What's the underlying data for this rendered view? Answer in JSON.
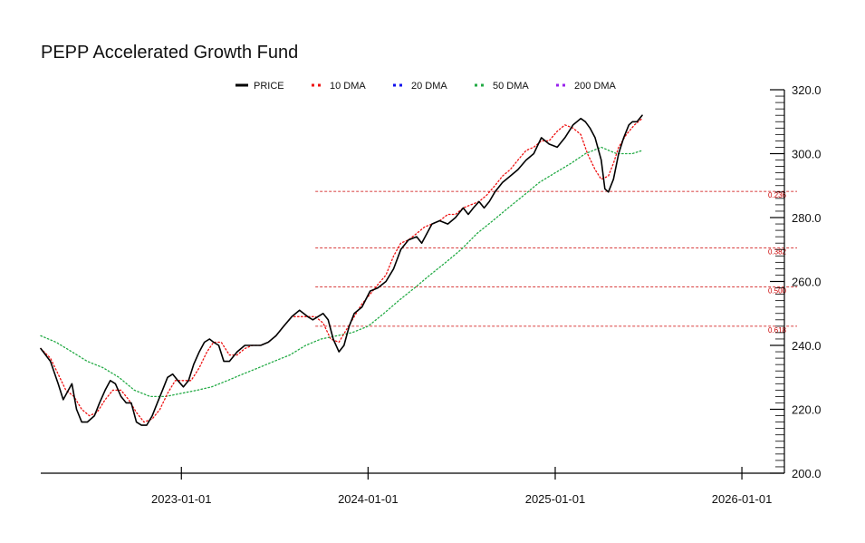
{
  "chart_data": {
    "type": "line",
    "title": "PEPP Accelerated Growth Fund",
    "xlabel": "",
    "ylabel": "",
    "x_range": [
      "2022-04-01",
      "2026-01-31"
    ],
    "ylim": [
      200,
      320
    ],
    "y_ticks": [
      "320.0",
      "300.0",
      "280.0",
      "260.0",
      "240.0",
      "220.0",
      "200.0"
    ],
    "y_tick_values": [
      320,
      300,
      280,
      260,
      240,
      220,
      200
    ],
    "x_ticks": [
      "2023-01-01",
      "2024-01-01",
      "2025-01-01",
      "2026-01-01"
    ],
    "legend": [
      {
        "name": "PRICE",
        "color": "#000000"
      },
      {
        "name": "10 DMA",
        "color": "#ee1111"
      },
      {
        "name": "20 DMA",
        "color": "#1111ee"
      },
      {
        "name": "50 DMA",
        "color": "#22aa44"
      },
      {
        "name": "200 DMA",
        "color": "#9922ee"
      }
    ],
    "series": [
      {
        "name": "PRICE",
        "color": "#000000",
        "x": [
          "2022-04-01",
          "2022-04-20",
          "2022-05-05",
          "2022-05-15",
          "2022-05-25",
          "2022-06-01",
          "2022-06-10",
          "2022-06-20",
          "2022-07-01",
          "2022-07-15",
          "2022-07-25",
          "2022-08-05",
          "2022-08-15",
          "2022-08-25",
          "2022-09-05",
          "2022-09-15",
          "2022-09-25",
          "2022-10-05",
          "2022-10-15",
          "2022-10-25",
          "2022-11-05",
          "2022-11-15",
          "2022-11-25",
          "2022-12-05",
          "2022-12-15",
          "2022-12-25",
          "2023-01-05",
          "2023-01-15",
          "2023-01-25",
          "2023-02-05",
          "2023-02-15",
          "2023-02-25",
          "2023-03-05",
          "2023-03-15",
          "2023-03-25",
          "2023-04-05",
          "2023-04-20",
          "2023-05-05",
          "2023-05-20",
          "2023-06-05",
          "2023-06-20",
          "2023-07-05",
          "2023-07-20",
          "2023-08-05",
          "2023-08-20",
          "2023-09-05",
          "2023-09-15",
          "2023-09-25",
          "2023-10-05",
          "2023-10-15",
          "2023-10-25",
          "2023-11-05",
          "2023-11-15",
          "2023-11-25",
          "2023-12-05",
          "2023-12-20",
          "2024-01-05",
          "2024-01-20",
          "2024-02-05",
          "2024-02-20",
          "2024-03-05",
          "2024-03-20",
          "2024-04-05",
          "2024-04-15",
          "2024-04-25",
          "2024-05-05",
          "2024-05-20",
          "2024-06-05",
          "2024-06-20",
          "2024-07-05",
          "2024-07-15",
          "2024-07-25",
          "2024-08-05",
          "2024-08-15",
          "2024-08-25",
          "2024-09-05",
          "2024-09-20",
          "2024-10-05",
          "2024-10-20",
          "2024-11-05",
          "2024-11-20",
          "2024-12-05",
          "2024-12-20",
          "2025-01-05",
          "2025-01-20",
          "2025-02-05",
          "2025-02-20",
          "2025-03-01",
          "2025-03-10",
          "2025-03-20",
          "2025-04-01",
          "2025-04-08",
          "2025-04-15",
          "2025-04-25",
          "2025-05-05",
          "2025-05-15",
          "2025-05-25",
          "2025-06-01",
          "2025-06-10",
          "2025-06-20"
        ],
        "y": [
          239,
          235,
          228,
          223,
          226,
          228,
          220,
          216,
          216,
          218,
          222,
          226,
          229,
          228,
          224,
          222,
          222,
          216,
          215,
          215,
          218,
          222,
          226,
          230,
          231,
          229,
          227,
          229,
          234,
          238,
          241,
          242,
          241,
          240,
          235,
          235,
          238,
          240,
          240,
          240,
          241,
          243,
          246,
          249,
          251,
          249,
          248,
          249,
          250,
          248,
          242,
          238,
          240,
          246,
          250,
          252,
          257,
          258,
          260,
          264,
          270,
          273,
          274,
          272,
          275,
          278,
          279,
          278,
          280,
          283,
          281,
          283,
          285,
          283,
          285,
          288,
          291,
          293,
          295,
          298,
          300,
          305,
          303,
          302,
          305,
          309,
          311,
          310,
          308,
          305,
          298,
          289,
          288,
          292,
          300,
          305,
          309,
          310,
          310,
          312
        ]
      },
      {
        "name": "10 DMA",
        "color": "#ee1111",
        "x": [
          "2022-04-01",
          "2022-04-20",
          "2022-05-05",
          "2022-05-20",
          "2022-06-05",
          "2022-06-20",
          "2022-07-05",
          "2022-07-20",
          "2022-08-05",
          "2022-08-20",
          "2022-09-05",
          "2022-09-20",
          "2022-10-05",
          "2022-10-20",
          "2022-11-05",
          "2022-11-20",
          "2022-12-05",
          "2022-12-20",
          "2023-01-05",
          "2023-01-20",
          "2023-02-05",
          "2023-02-20",
          "2023-03-05",
          "2023-03-20",
          "2023-04-05",
          "2023-04-20",
          "2023-05-05",
          "2023-05-20",
          "2023-06-05",
          "2023-06-20",
          "2023-07-05",
          "2023-07-20",
          "2023-08-05",
          "2023-08-20",
          "2023-09-05",
          "2023-09-20",
          "2023-10-05",
          "2023-10-20",
          "2023-11-05",
          "2023-11-20",
          "2023-12-05",
          "2023-12-20",
          "2024-01-05",
          "2024-01-20",
          "2024-02-05",
          "2024-02-20",
          "2024-03-05",
          "2024-03-20",
          "2024-04-05",
          "2024-04-20",
          "2024-05-05",
          "2024-05-20",
          "2024-06-05",
          "2024-06-20",
          "2024-07-05",
          "2024-07-20",
          "2024-08-05",
          "2024-08-20",
          "2024-09-05",
          "2024-09-20",
          "2024-10-05",
          "2024-10-20",
          "2024-11-05",
          "2024-11-20",
          "2024-12-05",
          "2024-12-20",
          "2025-01-05",
          "2025-01-20",
          "2025-02-05",
          "2025-02-20",
          "2025-03-05",
          "2025-03-20",
          "2025-04-01",
          "2025-04-15",
          "2025-04-25",
          "2025-05-05",
          "2025-05-20",
          "2025-06-05",
          "2025-06-20"
        ],
        "y": [
          239,
          236,
          231,
          226,
          224,
          220,
          218,
          219,
          223,
          226,
          226,
          223,
          219,
          216,
          217,
          220,
          225,
          229,
          229,
          229,
          233,
          238,
          241,
          241,
          237,
          237,
          239,
          240,
          240,
          241,
          243,
          246,
          249,
          249,
          249,
          249,
          247,
          242,
          241,
          245,
          249,
          253,
          256,
          259,
          262,
          268,
          272,
          273,
          275,
          277,
          278,
          279,
          281,
          281,
          283,
          284,
          285,
          287,
          290,
          293,
          295,
          298,
          301,
          302,
          304,
          304,
          307,
          309,
          308,
          306,
          300,
          295,
          292,
          293,
          297,
          302,
          306,
          309,
          311
        ]
      },
      {
        "name": "50 DMA",
        "color": "#22aa44",
        "x": [
          "2022-04-01",
          "2022-05-01",
          "2022-06-01",
          "2022-07-01",
          "2022-08-01",
          "2022-09-01",
          "2022-10-01",
          "2022-11-01",
          "2022-12-01",
          "2023-01-01",
          "2023-02-01",
          "2023-03-01",
          "2023-04-01",
          "2023-05-01",
          "2023-06-01",
          "2023-07-01",
          "2023-08-01",
          "2023-09-01",
          "2023-10-01",
          "2023-11-01",
          "2023-12-01",
          "2024-01-01",
          "2024-02-01",
          "2024-03-01",
          "2024-04-01",
          "2024-05-01",
          "2024-06-01",
          "2024-07-01",
          "2024-08-01",
          "2024-09-01",
          "2024-10-01",
          "2024-11-01",
          "2024-12-01",
          "2025-01-01",
          "2025-02-01",
          "2025-03-01",
          "2025-04-01",
          "2025-05-01",
          "2025-06-01",
          "2025-06-20"
        ],
        "y": [
          243,
          241,
          238,
          235,
          233,
          230,
          226,
          224,
          224,
          225,
          226,
          227,
          229,
          231,
          233,
          235,
          237,
          240,
          242,
          243,
          244,
          246,
          250,
          254,
          258,
          262,
          266,
          270,
          275,
          279,
          283,
          287,
          291,
          294,
          297,
          300,
          302,
          300,
          300,
          301
        ]
      }
    ],
    "fib_levels": [
      {
        "label": "0.236",
        "value": 288.2
      },
      {
        "label": "0.382",
        "value": 270.5
      },
      {
        "label": "0.500",
        "value": 258.3
      },
      {
        "label": "0.618",
        "value": 246.0
      }
    ],
    "fib_start": "2023-09-20"
  }
}
